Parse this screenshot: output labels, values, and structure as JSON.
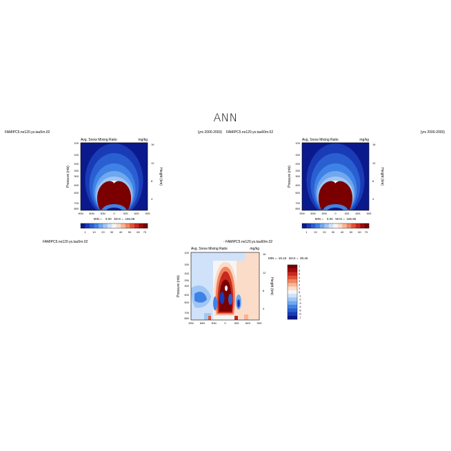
{
  "page_title": "ANN",
  "colors": {
    "colormap": [
      "#0a1a8c",
      "#1a3bb6",
      "#2a5fd2",
      "#3f82e6",
      "#6fa8ef",
      "#9fc6f4",
      "#cfe2fa",
      "#f5f5f5",
      "#fbdcc8",
      "#f8b596",
      "#f08561",
      "#e05538",
      "#c8281e",
      "#9e0c0c",
      "#7a0000"
    ]
  },
  "chart_data": [
    {
      "type": "heatmap",
      "case_label": "FAMIPC5.ne120.ys.tau5m.02",
      "period_label": "(yrs 2000-2003)",
      "title": "Avg. Snow Mixing Ratio",
      "units": "mg/kg",
      "ylabel": "Pressure (mb)",
      "ylabel_right": "Height (km)",
      "x_ticks": [
        "90N",
        "60N",
        "30N",
        "0",
        "30S",
        "60S",
        "90S"
      ],
      "y_ticks": [
        "100",
        "150",
        "200",
        "250",
        "300",
        "400",
        "500",
        "700",
        "850"
      ],
      "y_ticks_right": [
        "16",
        "12",
        "8",
        "4"
      ],
      "stats": "MIN =    0.00   MAX =  166.95",
      "colorbar_labels": [
        "1",
        "10",
        "20",
        "30",
        "40",
        "50",
        "60",
        "70"
      ],
      "colorbar_orientation": "horizontal",
      "min": 0.0,
      "max": 166.95
    },
    {
      "type": "heatmap",
      "case_label": "FAMIPC5.ne120.ys.tau60m.02",
      "period_label": "(yrs 2000-2003)",
      "title": "Avg. Snow Mixing Ratio",
      "units": "mg/kg",
      "ylabel": "Pressure (mb)",
      "ylabel_right": "Height (km)",
      "x_ticks": [
        "90N",
        "60N",
        "30N",
        "0",
        "30S",
        "60S",
        "90S"
      ],
      "y_ticks": [
        "100",
        "150",
        "200",
        "250",
        "300",
        "400",
        "500",
        "700",
        "850"
      ],
      "y_ticks_right": [
        "16",
        "12",
        "8",
        "4"
      ],
      "stats": "MIN =    0.00   MAX =  166.85",
      "colorbar_labels": [
        "1",
        "10",
        "20",
        "30",
        "40",
        "50",
        "60",
        "70"
      ],
      "colorbar_orientation": "horizontal",
      "min": 0.0,
      "max": 166.85
    },
    {
      "type": "heatmap",
      "case_label": "FAMIPC5.ne120.ys.tau5m.02",
      "diff_label": "- FAMIPC5.ne120.ys.tau60m.02",
      "title": "Avg. Snow Mixing Ratio",
      "units": "mg/kg",
      "ylabel": "Pressure (mb)",
      "ylabel_right": "Height (km)",
      "x_ticks": [
        "90N",
        "60N",
        "30N",
        "0",
        "30S",
        "60S",
        "90S"
      ],
      "y_ticks": [
        "100",
        "150",
        "200",
        "250",
        "300",
        "400",
        "500",
        "700",
        "850"
      ],
      "y_ticks_right": [
        "16",
        "12",
        "8",
        "4"
      ],
      "stats": "MIN = -19.18   MAX =  38.46",
      "colorbar_labels": [
        "7",
        "6",
        "5",
        "4",
        "3",
        "2",
        "1",
        "0",
        "-1",
        "-2",
        "-3",
        "-4",
        "-5",
        "-6",
        "-7"
      ],
      "colorbar_orientation": "vertical",
      "min": -19.18,
      "max": 38.46
    }
  ]
}
